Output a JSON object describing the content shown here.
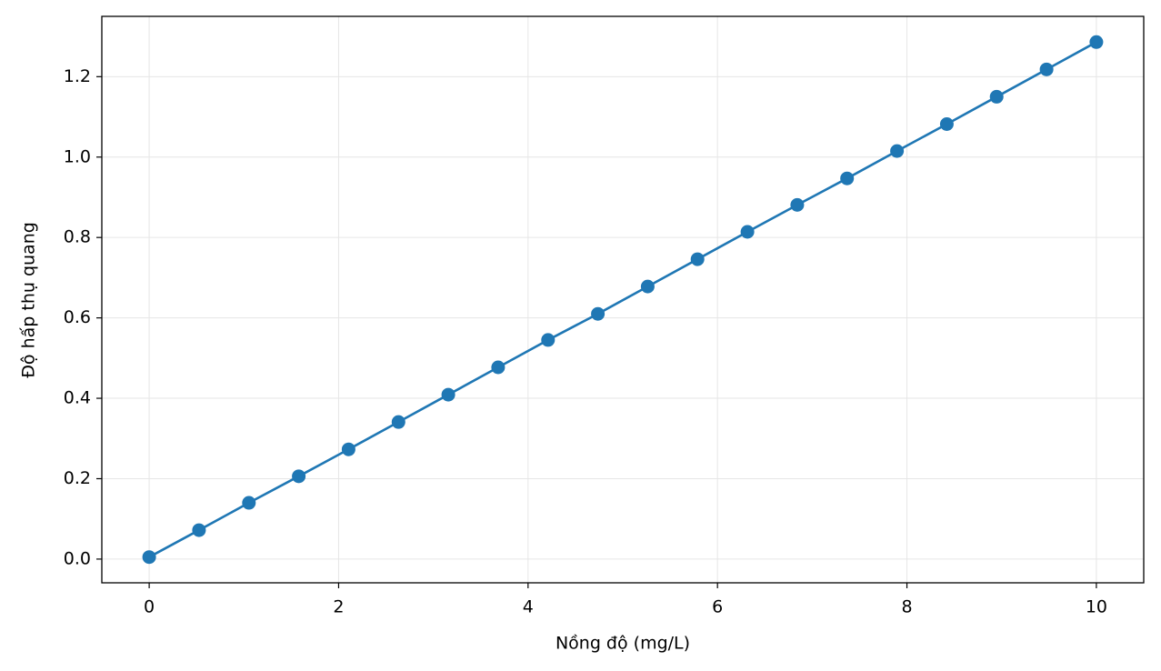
{
  "chart_data": {
    "type": "line",
    "xlabel": "Nồng độ (mg/L)",
    "ylabel": "Độ hấp thụ quang",
    "x": [
      0,
      0.526,
      1.053,
      1.579,
      2.105,
      2.632,
      3.158,
      3.684,
      4.211,
      4.737,
      5.263,
      5.789,
      6.316,
      6.842,
      7.368,
      7.895,
      8.421,
      8.947,
      9.474,
      10
    ],
    "series": [
      {
        "color": "#1f77b4",
        "values": [
          0.005,
          0.072,
          0.14,
          0.206,
          0.273,
          0.341,
          0.409,
          0.477,
          0.545,
          0.61,
          0.678,
          0.746,
          0.814,
          0.881,
          0.947,
          1.015,
          1.082,
          1.15,
          1.218,
          1.286
        ]
      }
    ],
    "xlim": [
      -0.5,
      10.5
    ],
    "ylim": [
      -0.059,
      1.35
    ],
    "xticks": [
      0,
      2,
      4,
      6,
      8,
      10
    ],
    "yticks": [
      {
        "value": 0,
        "label": "0.0"
      },
      {
        "value": 0.2,
        "label": "0.2"
      },
      {
        "value": 0.4,
        "label": "0.4"
      },
      {
        "value": 0.6,
        "label": "0.6"
      },
      {
        "value": 0.8,
        "label": "0.8"
      },
      {
        "value": 1.0,
        "label": "1.0"
      },
      {
        "value": 1.2,
        "label": "1.2"
      }
    ],
    "grid": true
  }
}
